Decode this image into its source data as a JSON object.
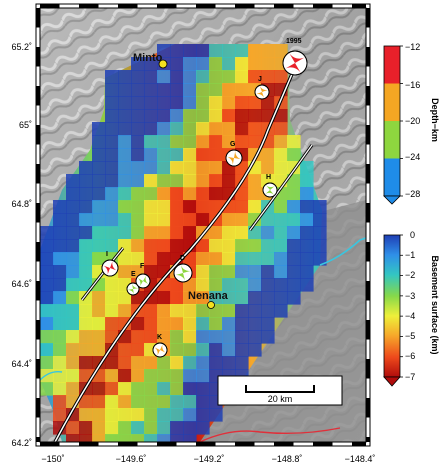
{
  "map": {
    "lat_ticks": [
      "65.2˚",
      "65˚",
      "64.8˚",
      "64.6˚",
      "64.4˚",
      "64.2˚"
    ],
    "lon_ticks": [
      "−150˚",
      "−149.6˚",
      "−149.2˚",
      "−148.8˚",
      "−148.4˚"
    ],
    "places": [
      {
        "name": "Minto"
      },
      {
        "name": "Nenana"
      }
    ],
    "earthquake_labels": [
      "1995",
      "J",
      "G",
      "H",
      "I",
      "E",
      "F",
      "D",
      "K"
    ],
    "scale_bar": {
      "label": "20 km"
    }
  },
  "colorbar_depth": {
    "title": "Depth−km",
    "ticks": [
      "−12",
      "−16",
      "−20",
      "−24",
      "−28"
    ],
    "colors": [
      "#e8202a",
      "#f5a623",
      "#8ed63f",
      "#1f8ce8"
    ]
  },
  "colorbar_basement": {
    "title": "Basement surface (km)",
    "ticks": [
      "0",
      "−1",
      "−2",
      "−3",
      "−4",
      "−5",
      "−6",
      "−7"
    ],
    "colors": [
      "#1f3fb5",
      "#2f8fe8",
      "#33c6c2",
      "#86d84a",
      "#eef03a",
      "#f6a72a",
      "#ee4a1c",
      "#b00c0c"
    ]
  }
}
